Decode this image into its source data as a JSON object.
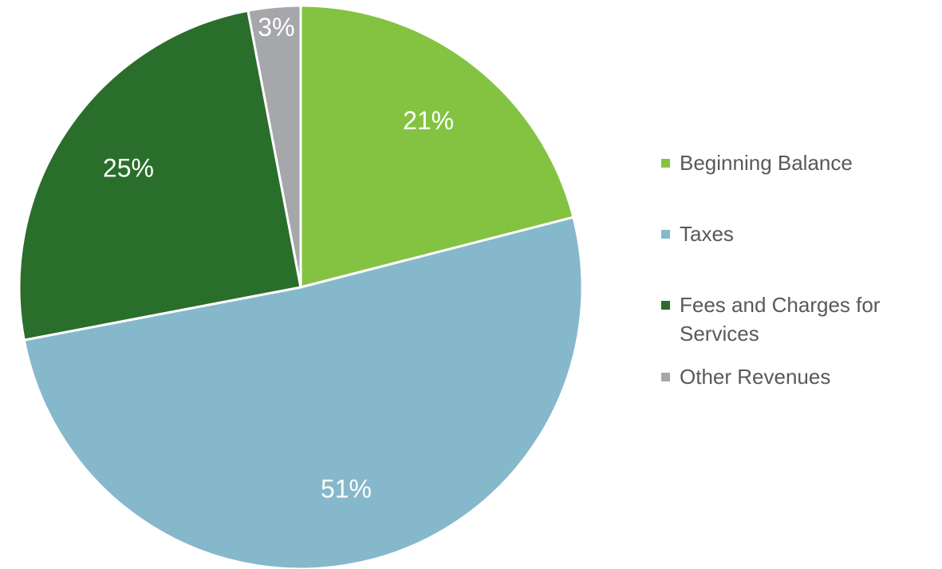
{
  "chart_data": {
    "type": "pie",
    "categories": [
      "Beginning Balance",
      "Taxes",
      "Fees and Charges for Services",
      "Other Revenues"
    ],
    "values": [
      21,
      51,
      25,
      3
    ],
    "value_labels": [
      "21%",
      "51%",
      "25%",
      "3%"
    ],
    "colors": [
      "#84c341",
      "#86b8cc",
      "#2a6e2c",
      "#a6a7aa"
    ],
    "legend": "right"
  }
}
